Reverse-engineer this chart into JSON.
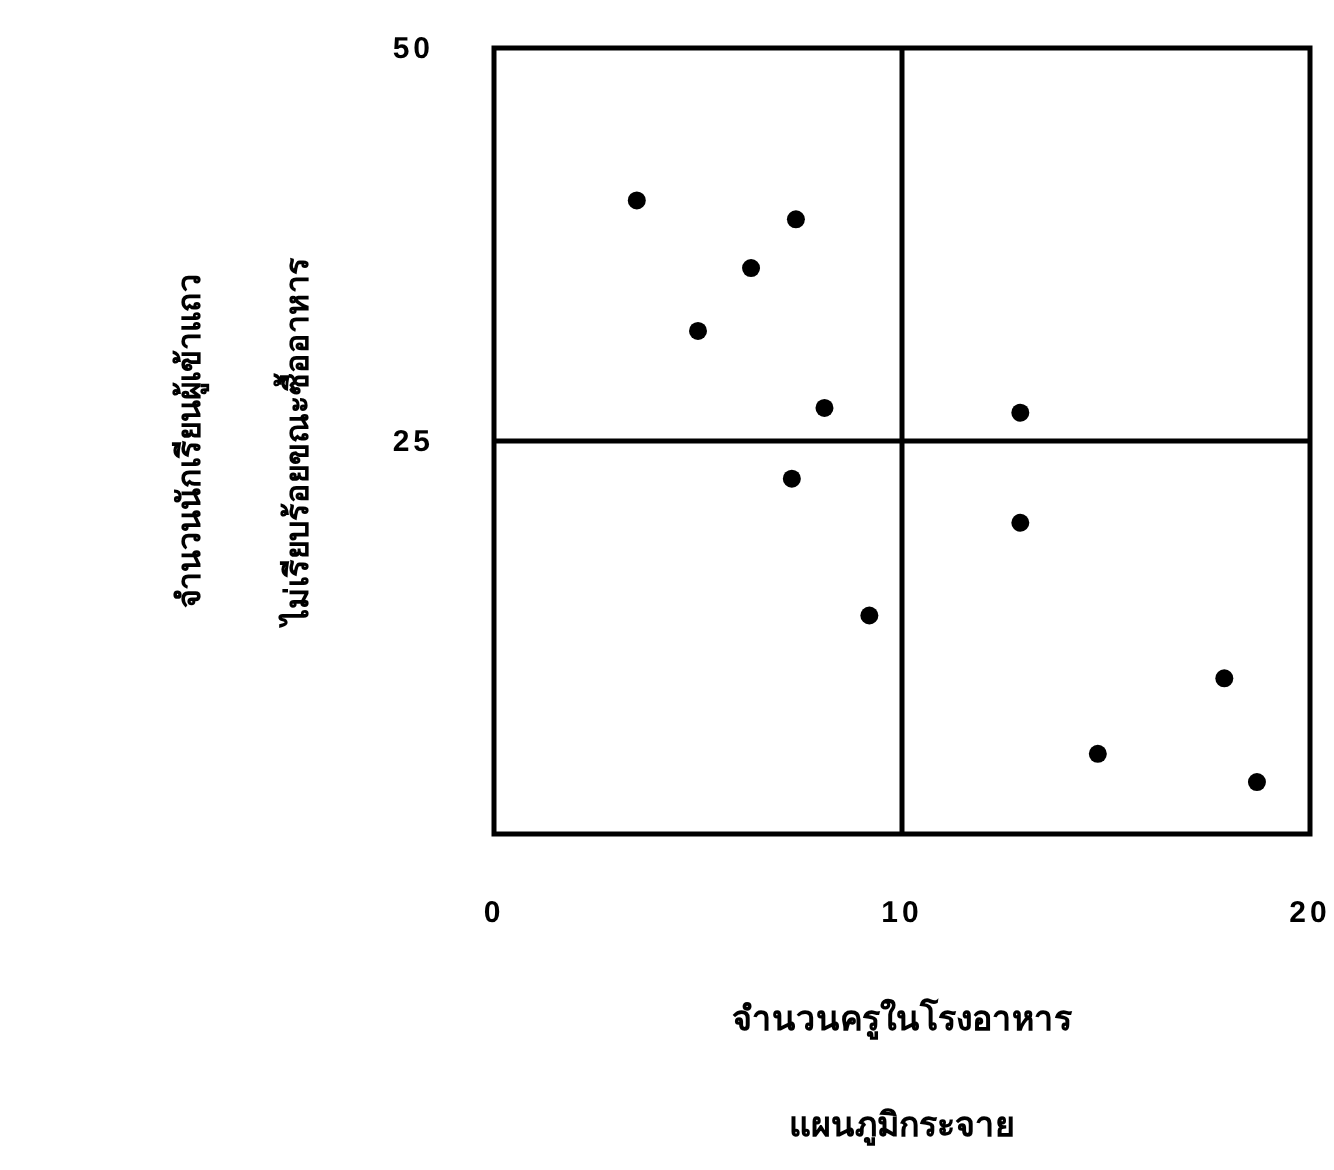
{
  "chart_data": {
    "type": "scatter",
    "xlabel": "จำนวนครูในโรงอาหาร",
    "ylabel": "จำนวนนักเรียนผู้เข้าแถว\nไม่เรียบร้อยขณะซื้ออาหาร",
    "annotations": [
      "แผนภูมิกระจาย"
    ],
    "x": [
      3.5,
      7.4,
      6.3,
      5.0,
      8.1,
      12.9,
      7.3,
      12.9,
      9.2,
      17.9,
      14.8,
      18.7
    ],
    "values": [
      40.3,
      39.1,
      36.0,
      32.0,
      27.1,
      26.8,
      22.6,
      19.8,
      13.9,
      9.9,
      5.1,
      3.3
    ],
    "color": "#000000",
    "marker": "circle",
    "xlim": [
      0,
      20
    ],
    "xticks": [
      0,
      10,
      20
    ],
    "ylim": [
      0,
      50
    ],
    "yticks": [
      25,
      50
    ],
    "ref_lines": [
      {
        "axis": "x",
        "value": 10,
        "color": "#000000"
      },
      {
        "axis": "y",
        "value": 25,
        "color": "#000000"
      }
    ],
    "line_style": "solid"
  }
}
